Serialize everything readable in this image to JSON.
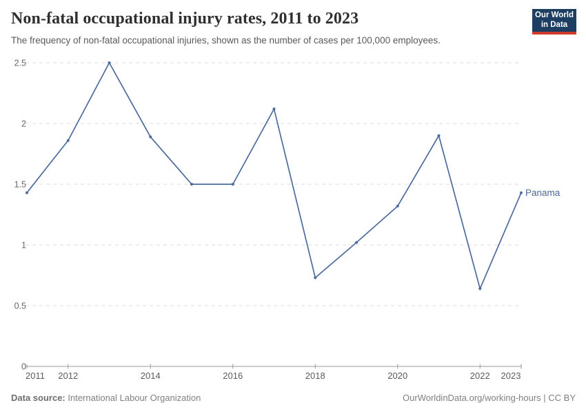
{
  "header": {
    "title": "Non-fatal occupational injury rates, 2011 to 2023",
    "subtitle": "The frequency of non-fatal occupational injuries, shown as the number of cases per 100,000 employees.",
    "logo": {
      "line1": "Our World",
      "line2": "in Data",
      "bg_color": "#1d3d63",
      "bar_color": "#d23a2b"
    }
  },
  "chart_data": {
    "type": "line",
    "title": "Non-fatal occupational injury rates, 2011 to 2023",
    "xlabel": "",
    "ylabel": "",
    "x": [
      2011,
      2012,
      2013,
      2014,
      2015,
      2016,
      2017,
      2018,
      2019,
      2020,
      2021,
      2022,
      2023
    ],
    "series": [
      {
        "name": "Panama",
        "color": "#4C6A9C",
        "values": [
          1.43,
          1.86,
          2.5,
          1.89,
          1.5,
          1.5,
          2.12,
          0.73,
          1.02,
          1.32,
          1.9,
          0.64,
          1.43
        ]
      }
    ],
    "xlim": [
      2011,
      2023
    ],
    "ylim": [
      0,
      2.5
    ],
    "y_ticks": [
      0,
      0.5,
      1,
      1.5,
      2,
      2.5
    ],
    "x_tick_years": [
      2011,
      2012,
      2014,
      2016,
      2018,
      2020,
      2022,
      2023
    ],
    "grid": "horizontal-dashed",
    "gridline_color": "#dcdcdc",
    "axis_color": "#9a9a9a",
    "tick_label_color": "#666666",
    "legend_position": "line-end-label"
  },
  "footer": {
    "source_label": "Data source:",
    "source_value": " International Labour Organization",
    "citation": "OurWorldinData.org/working-hours | CC BY"
  }
}
